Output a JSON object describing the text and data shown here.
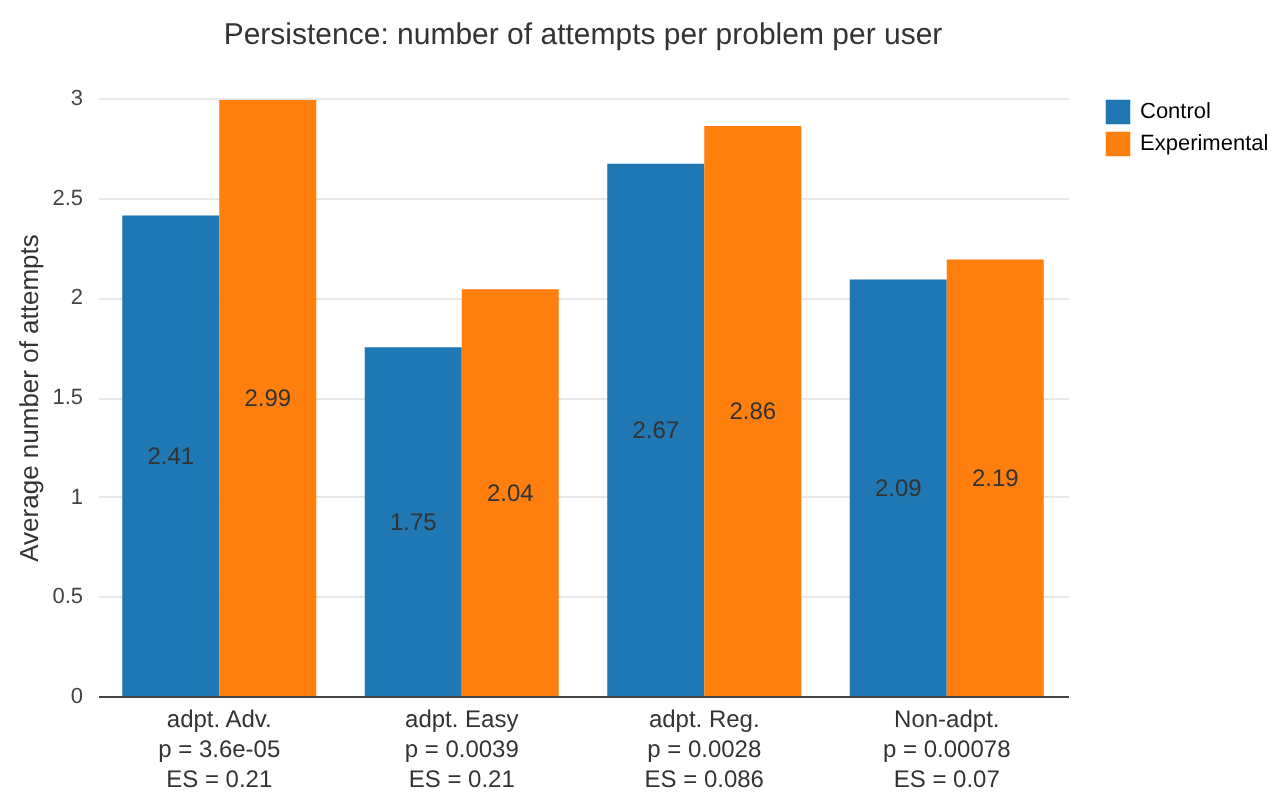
{
  "chart_data": {
    "type": "bar",
    "title": "Persistence: number of attempts per problem per user",
    "ylabel": "Average number of attempts",
    "categories": [
      "adpt. Adv.\np = 3.6e-05\nES = 0.21",
      "adpt. Easy\np = 0.0039\nES = 0.21",
      "adpt. Reg.\np = 0.0028\nES = 0.086",
      "Non-adpt.\np = 0.00078\nES = 0.07"
    ],
    "series": [
      {
        "name": "Control",
        "color": "#1f77b4",
        "values": [
          2.41,
          1.75,
          2.67,
          2.09
        ]
      },
      {
        "name": "Experimental",
        "color": "#ff7f0e",
        "values": [
          2.99,
          2.04,
          2.86,
          2.19
        ]
      }
    ],
    "ylim": [
      0,
      3
    ],
    "yticks": [
      0,
      0.5,
      1,
      1.5,
      2,
      2.5,
      3
    ],
    "grid": "y",
    "legend": "top right",
    "data_labels": true
  }
}
